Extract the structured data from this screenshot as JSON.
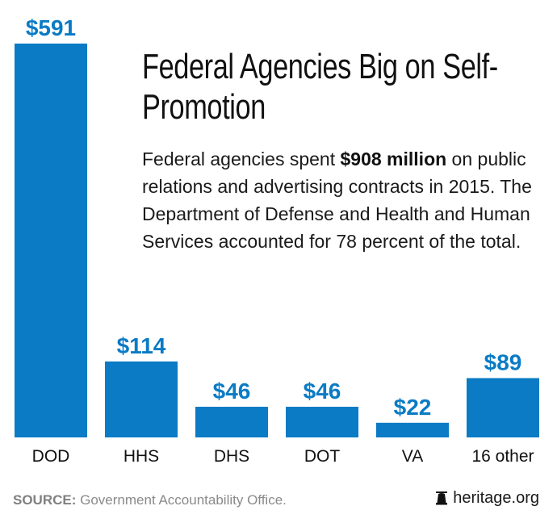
{
  "chart_data": {
    "type": "bar",
    "title": "Federal Agencies Big on Self-Promotion",
    "subtitle_parts": [
      {
        "text": "Federal agencies spent ",
        "bold": false
      },
      {
        "text": "$908 million",
        "bold": true
      },
      {
        "text": " on public relations and advertising contracts in 2015. The Department of Defense and Health and Human Services accounted for 78 percent of the total.",
        "bold": false
      }
    ],
    "categories": [
      "DOD",
      "HHS",
      "DHS",
      "DOT",
      "VA",
      "16 other"
    ],
    "values": [
      591,
      114,
      46,
      46,
      22,
      89
    ],
    "data_labels": [
      "$591",
      "$114",
      "$46",
      "$46",
      "$22",
      "$89"
    ],
    "units": "millions of dollars",
    "xlabel": "",
    "ylabel": "",
    "ylim": [
      0,
      591
    ],
    "grid": false,
    "legend": "none",
    "bar_color": "#0a7bc4"
  },
  "footer": {
    "source_label": "SOURCE:",
    "source_text": " Government Accountability Office.",
    "brand_icon": "liberty-bell-icon",
    "brand_text": "heritage.org"
  }
}
